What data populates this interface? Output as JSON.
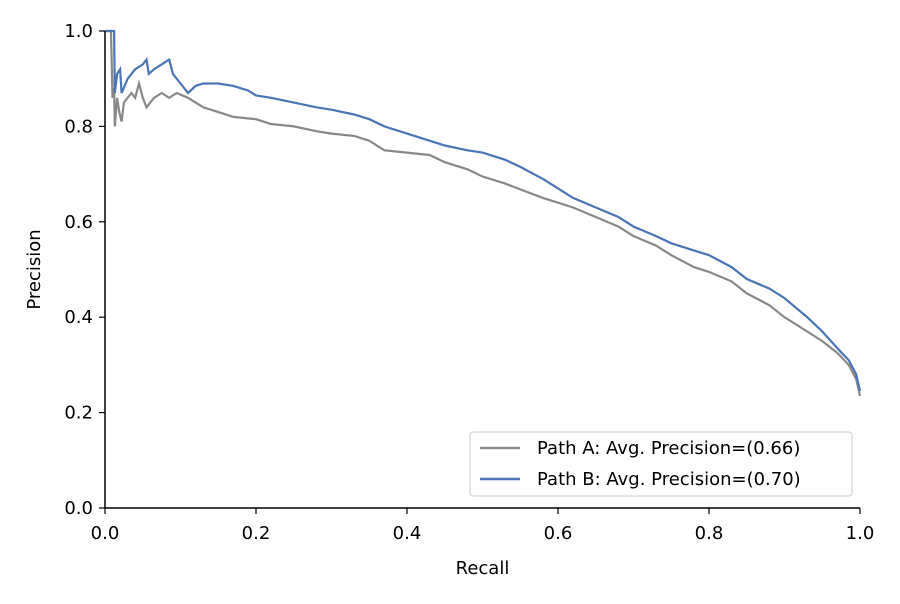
{
  "chart_data": {
    "type": "line",
    "title": "",
    "xlabel": "Recall",
    "ylabel": "Precision",
    "xlim": [
      0.0,
      1.0
    ],
    "ylim": [
      0.0,
      1.0
    ],
    "x_ticks": [
      "0.0",
      "0.2",
      "0.4",
      "0.6",
      "0.8",
      "1.0"
    ],
    "y_ticks": [
      "0.0",
      "0.2",
      "0.4",
      "0.6",
      "0.8",
      "1.0"
    ],
    "grid": false,
    "legend_position": "bottom-right",
    "series": [
      {
        "name": "Path A: Avg. Precision=(0.66)",
        "color": "#888888",
        "points": [
          [
            0.0,
            1.0
          ],
          [
            0.008,
            1.0
          ],
          [
            0.01,
            0.86
          ],
          [
            0.012,
            0.88
          ],
          [
            0.013,
            0.8
          ],
          [
            0.016,
            0.86
          ],
          [
            0.019,
            0.83
          ],
          [
            0.022,
            0.81
          ],
          [
            0.025,
            0.85
          ],
          [
            0.035,
            0.87
          ],
          [
            0.04,
            0.86
          ],
          [
            0.045,
            0.89
          ],
          [
            0.05,
            0.86
          ],
          [
            0.055,
            0.84
          ],
          [
            0.065,
            0.86
          ],
          [
            0.075,
            0.87
          ],
          [
            0.085,
            0.86
          ],
          [
            0.095,
            0.87
          ],
          [
            0.11,
            0.86
          ],
          [
            0.12,
            0.85
          ],
          [
            0.13,
            0.84
          ],
          [
            0.15,
            0.83
          ],
          [
            0.17,
            0.82
          ],
          [
            0.2,
            0.815
          ],
          [
            0.22,
            0.805
          ],
          [
            0.25,
            0.8
          ],
          [
            0.28,
            0.79
          ],
          [
            0.3,
            0.785
          ],
          [
            0.33,
            0.78
          ],
          [
            0.35,
            0.77
          ],
          [
            0.37,
            0.75
          ],
          [
            0.4,
            0.745
          ],
          [
            0.43,
            0.74
          ],
          [
            0.45,
            0.725
          ],
          [
            0.48,
            0.71
          ],
          [
            0.5,
            0.695
          ],
          [
            0.53,
            0.68
          ],
          [
            0.55,
            0.668
          ],
          [
            0.58,
            0.65
          ],
          [
            0.6,
            0.64
          ],
          [
            0.62,
            0.63
          ],
          [
            0.65,
            0.61
          ],
          [
            0.68,
            0.59
          ],
          [
            0.7,
            0.57
          ],
          [
            0.73,
            0.55
          ],
          [
            0.75,
            0.53
          ],
          [
            0.78,
            0.505
          ],
          [
            0.8,
            0.495
          ],
          [
            0.83,
            0.475
          ],
          [
            0.85,
            0.45
          ],
          [
            0.88,
            0.425
          ],
          [
            0.9,
            0.4
          ],
          [
            0.93,
            0.37
          ],
          [
            0.95,
            0.35
          ],
          [
            0.97,
            0.325
          ],
          [
            0.985,
            0.3
          ],
          [
            0.995,
            0.27
          ],
          [
            1.0,
            0.235
          ]
        ]
      },
      {
        "name": "Path B: Avg. Precision=(0.70)",
        "color": "#4a74b4",
        "points": [
          [
            0.0,
            1.0
          ],
          [
            0.012,
            1.0
          ],
          [
            0.013,
            0.87
          ],
          [
            0.016,
            0.91
          ],
          [
            0.02,
            0.92
          ],
          [
            0.022,
            0.87
          ],
          [
            0.03,
            0.9
          ],
          [
            0.04,
            0.92
          ],
          [
            0.05,
            0.93
          ],
          [
            0.055,
            0.94
          ],
          [
            0.058,
            0.91
          ],
          [
            0.065,
            0.92
          ],
          [
            0.075,
            0.93
          ],
          [
            0.085,
            0.94
          ],
          [
            0.09,
            0.91
          ],
          [
            0.1,
            0.89
          ],
          [
            0.11,
            0.87
          ],
          [
            0.12,
            0.885
          ],
          [
            0.13,
            0.89
          ],
          [
            0.15,
            0.89
          ],
          [
            0.17,
            0.885
          ],
          [
            0.19,
            0.875
          ],
          [
            0.2,
            0.865
          ],
          [
            0.22,
            0.86
          ],
          [
            0.25,
            0.85
          ],
          [
            0.28,
            0.84
          ],
          [
            0.3,
            0.835
          ],
          [
            0.33,
            0.825
          ],
          [
            0.35,
            0.815
          ],
          [
            0.37,
            0.8
          ],
          [
            0.4,
            0.785
          ],
          [
            0.43,
            0.77
          ],
          [
            0.45,
            0.76
          ],
          [
            0.48,
            0.75
          ],
          [
            0.5,
            0.745
          ],
          [
            0.53,
            0.73
          ],
          [
            0.55,
            0.715
          ],
          [
            0.58,
            0.69
          ],
          [
            0.6,
            0.67
          ],
          [
            0.62,
            0.65
          ],
          [
            0.65,
            0.63
          ],
          [
            0.68,
            0.61
          ],
          [
            0.7,
            0.59
          ],
          [
            0.73,
            0.57
          ],
          [
            0.75,
            0.555
          ],
          [
            0.78,
            0.54
          ],
          [
            0.8,
            0.53
          ],
          [
            0.83,
            0.505
          ],
          [
            0.85,
            0.48
          ],
          [
            0.88,
            0.46
          ],
          [
            0.9,
            0.44
          ],
          [
            0.93,
            0.4
          ],
          [
            0.95,
            0.37
          ],
          [
            0.97,
            0.335
          ],
          [
            0.985,
            0.31
          ],
          [
            0.995,
            0.28
          ],
          [
            1.0,
            0.245
          ]
        ]
      }
    ]
  }
}
